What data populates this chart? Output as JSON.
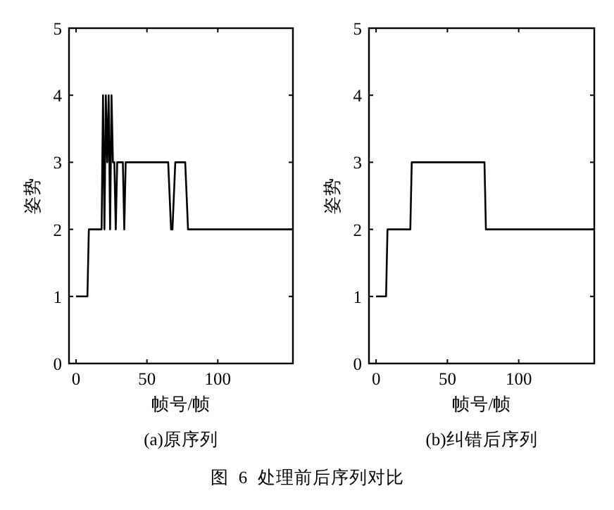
{
  "chart_data": [
    {
      "type": "line",
      "title": "(a)原序列",
      "xlabel": "帧号/帧",
      "ylabel": "姿势",
      "xlim": [
        -5,
        153
      ],
      "ylim": [
        0,
        5
      ],
      "xticks": [
        0,
        50,
        100
      ],
      "yticks": [
        0,
        1,
        2,
        3,
        4,
        5
      ],
      "line_style": "solid",
      "marker": "none",
      "annotations": [
        "图 6 处理前后序列对比"
      ],
      "series": [
        {
          "color": "#000000",
          "x": [
            0,
            8,
            9,
            18,
            19,
            20,
            21,
            22,
            23,
            24,
            25,
            26,
            27,
            28,
            29,
            33,
            34,
            35,
            65,
            67,
            68,
            70,
            77,
            79,
            153
          ],
          "values": [
            1,
            1,
            2,
            2,
            4,
            2,
            4,
            3,
            4,
            2,
            4,
            3,
            3,
            2,
            3,
            3,
            2,
            3,
            3,
            2,
            2,
            3,
            3,
            2,
            2
          ]
        }
      ]
    },
    {
      "type": "line",
      "title": "(b)纠错后序列",
      "xlabel": "帧号/帧",
      "ylabel": "姿势",
      "xlim": [
        -5,
        153
      ],
      "ylim": [
        0,
        5
      ],
      "xticks": [
        0,
        50,
        100
      ],
      "yticks": [
        0,
        1,
        2,
        3,
        4,
        5
      ],
      "line_style": "solid",
      "marker": "none",
      "series": [
        {
          "color": "#000000",
          "x": [
            0,
            7,
            8,
            24,
            25,
            76,
            77,
            153
          ],
          "values": [
            1,
            1,
            2,
            2,
            3,
            3,
            2,
            2
          ]
        }
      ]
    }
  ]
}
